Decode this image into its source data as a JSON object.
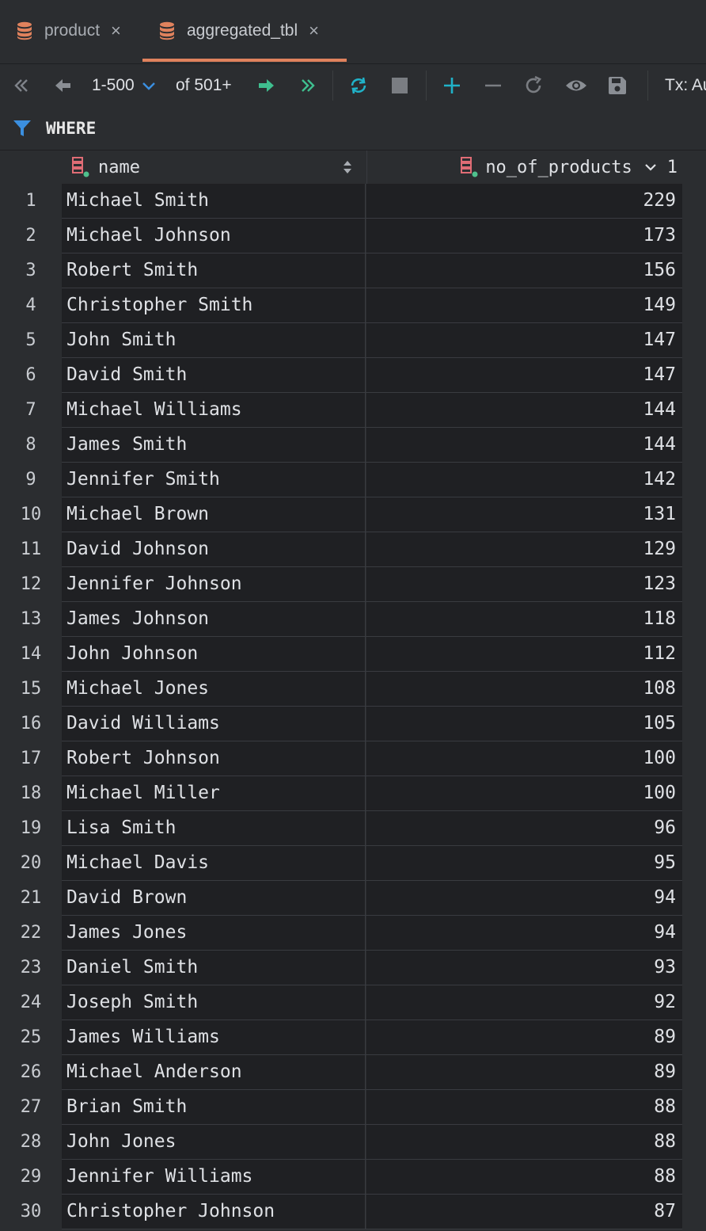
{
  "tabs": [
    {
      "label": "product",
      "close": "×",
      "active": false
    },
    {
      "label": "aggregated_tbl",
      "close": "×",
      "active": true
    }
  ],
  "toolbar": {
    "page_range": "1-500",
    "total": "of 501+",
    "tx_label": "Tx: Au"
  },
  "filter": {
    "label": "WHERE"
  },
  "colors": {
    "accent": "#e0825d",
    "green": "#4fc08d",
    "teal": "#20b2c8",
    "key": "#e06c75"
  },
  "columns": {
    "name": "name",
    "count": "no_of_products",
    "sort_index": "1"
  },
  "rows": [
    {
      "n": "1",
      "name": "Michael Smith",
      "v": "229"
    },
    {
      "n": "2",
      "name": "Michael Johnson",
      "v": "173"
    },
    {
      "n": "3",
      "name": "Robert Smith",
      "v": "156"
    },
    {
      "n": "4",
      "name": "Christopher Smith",
      "v": "149"
    },
    {
      "n": "5",
      "name": "John Smith",
      "v": "147"
    },
    {
      "n": "6",
      "name": "David Smith",
      "v": "147"
    },
    {
      "n": "7",
      "name": "Michael Williams",
      "v": "144"
    },
    {
      "n": "8",
      "name": "James Smith",
      "v": "144"
    },
    {
      "n": "9",
      "name": "Jennifer Smith",
      "v": "142"
    },
    {
      "n": "10",
      "name": "Michael Brown",
      "v": "131"
    },
    {
      "n": "11",
      "name": "David Johnson",
      "v": "129"
    },
    {
      "n": "12",
      "name": "Jennifer Johnson",
      "v": "123"
    },
    {
      "n": "13",
      "name": "James Johnson",
      "v": "118"
    },
    {
      "n": "14",
      "name": "John Johnson",
      "v": "112"
    },
    {
      "n": "15",
      "name": "Michael Jones",
      "v": "108"
    },
    {
      "n": "16",
      "name": "David Williams",
      "v": "105"
    },
    {
      "n": "17",
      "name": "Robert Johnson",
      "v": "100"
    },
    {
      "n": "18",
      "name": "Michael Miller",
      "v": "100"
    },
    {
      "n": "19",
      "name": "Lisa Smith",
      "v": "96"
    },
    {
      "n": "20",
      "name": "Michael Davis",
      "v": "95"
    },
    {
      "n": "21",
      "name": "David Brown",
      "v": "94"
    },
    {
      "n": "22",
      "name": "James Jones",
      "v": "94"
    },
    {
      "n": "23",
      "name": "Daniel Smith",
      "v": "93"
    },
    {
      "n": "24",
      "name": "Joseph Smith",
      "v": "92"
    },
    {
      "n": "25",
      "name": "James Williams",
      "v": "89"
    },
    {
      "n": "26",
      "name": "Michael Anderson",
      "v": "89"
    },
    {
      "n": "27",
      "name": "Brian Smith",
      "v": "88"
    },
    {
      "n": "28",
      "name": "John Jones",
      "v": "88"
    },
    {
      "n": "29",
      "name": "Jennifer Williams",
      "v": "88"
    },
    {
      "n": "30",
      "name": "Christopher Johnson",
      "v": "87"
    }
  ]
}
